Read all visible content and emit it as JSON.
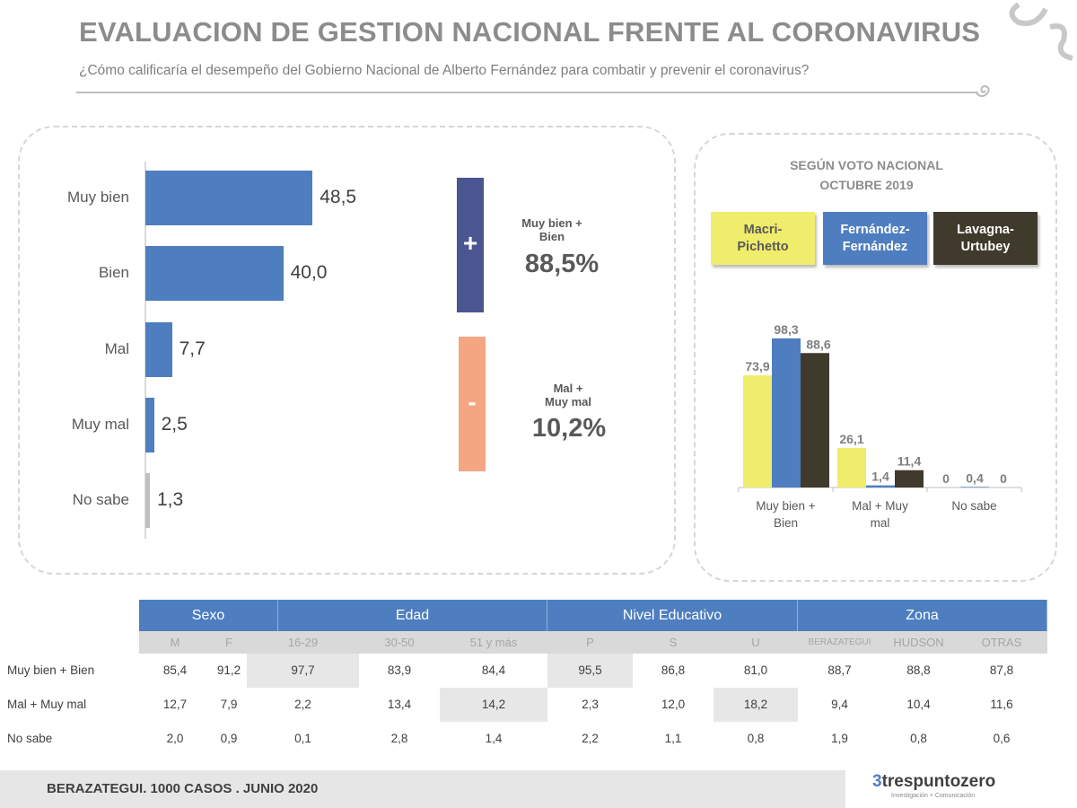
{
  "header": {
    "title": "EVALUACION DE GESTION NACIONAL FRENTE AL CORONAVIRUS",
    "subtitle": "¿Cómo calificaría el desempeño del Gobierno Nacional de Alberto Fernández para combatir y prevenir el coronavirus?"
  },
  "chart_data": [
    {
      "type": "bar",
      "orientation": "horizontal",
      "categories": [
        "Muy bien",
        "Bien",
        "Mal",
        "Muy mal",
        "No sabe"
      ],
      "values": [
        48.5,
        40.0,
        7.7,
        2.5,
        1.3
      ],
      "labels": [
        "48,5",
        "40,0",
        "7,7",
        "2,5",
        "1,3"
      ],
      "colors": [
        "#4e7ebf",
        "#4e7ebf",
        "#4e7ebf",
        "#4e7ebf",
        "#bfbfbf"
      ]
    },
    {
      "type": "bar",
      "title": "SEGÚN VOTO NACIONAL OCTUBRE 2019",
      "title_lines": [
        "SEGÚN VOTO NACIONAL",
        "OCTUBRE 2019"
      ],
      "categories": [
        "Muy bien + Bien",
        "Mal + Muy mal",
        "No sabe"
      ],
      "category_lines": [
        [
          "Muy bien +",
          "Bien"
        ],
        [
          "Mal + Muy",
          "mal"
        ],
        [
          "No sabe"
        ]
      ],
      "series": [
        {
          "name": "Macri-Pichetto",
          "name_lines": [
            "Macri-",
            "Pichetto"
          ],
          "color": "#f0ec6c",
          "values": [
            73.9,
            26.1,
            0
          ],
          "labels": [
            "73,9",
            "26,1",
            "0"
          ]
        },
        {
          "name": "Fernández-Fernández",
          "name_lines": [
            "Fernández-",
            "Fernández"
          ],
          "color": "#4e7ebf",
          "values": [
            98.3,
            1.4,
            0.4
          ],
          "labels": [
            "98,3",
            "1,4",
            "0,4"
          ]
        },
        {
          "name": "Lavagna-Urtubey",
          "name_lines": [
            "Lavagna-",
            "Urtubey"
          ],
          "color": "#3f3a2c",
          "values": [
            88.6,
            11.4,
            0
          ],
          "labels": [
            "88,6",
            "11,4",
            "0"
          ]
        }
      ],
      "legend": "top"
    }
  ],
  "summary": {
    "positive": {
      "sign": "+",
      "label_lines": [
        "Muy bien +",
        "Bien"
      ],
      "value": "88,5%",
      "color": "#4a5591"
    },
    "negative": {
      "sign": "-",
      "label_lines": [
        "Mal +",
        "Muy mal"
      ],
      "value": "10,2%",
      "color": "#f4a582"
    }
  },
  "table": {
    "groups": [
      "Sexo",
      "Edad",
      "Nivel Educativo",
      "Zona"
    ],
    "columns": [
      "M",
      "F",
      "16-29",
      "30-50",
      "51 y más",
      "P",
      "S",
      "U",
      "BERAZATEGUI",
      "HUDSON",
      "OTRAS"
    ],
    "rows": [
      {
        "label": "Muy bien + Bien",
        "values": [
          "85,4",
          "91,2",
          "97,7",
          "83,9",
          "84,4",
          "95,5",
          "86,8",
          "81,0",
          "88,7",
          "88,8",
          "87,8"
        ],
        "highlight": [
          2,
          5
        ]
      },
      {
        "label": "Mal + Muy mal",
        "values": [
          "12,7",
          "7,9",
          "2,2",
          "13,4",
          "14,2",
          "2,3",
          "12,0",
          "18,2",
          "9,4",
          "10,4",
          "11,6"
        ],
        "highlight": [
          4,
          7
        ]
      },
      {
        "label": "No sabe",
        "values": [
          "2,0",
          "0,9",
          "0,1",
          "2,8",
          "1,4",
          "2,2",
          "1,1",
          "0,8",
          "1,9",
          "0,8",
          "0,6"
        ],
        "highlight": []
      }
    ]
  },
  "footer": {
    "text": "BERAZATEGUI. 1000 CASOS . JUNIO 2020",
    "logo": "trespuntozero",
    "logo_tagline": "Investigación + Comunicación"
  }
}
